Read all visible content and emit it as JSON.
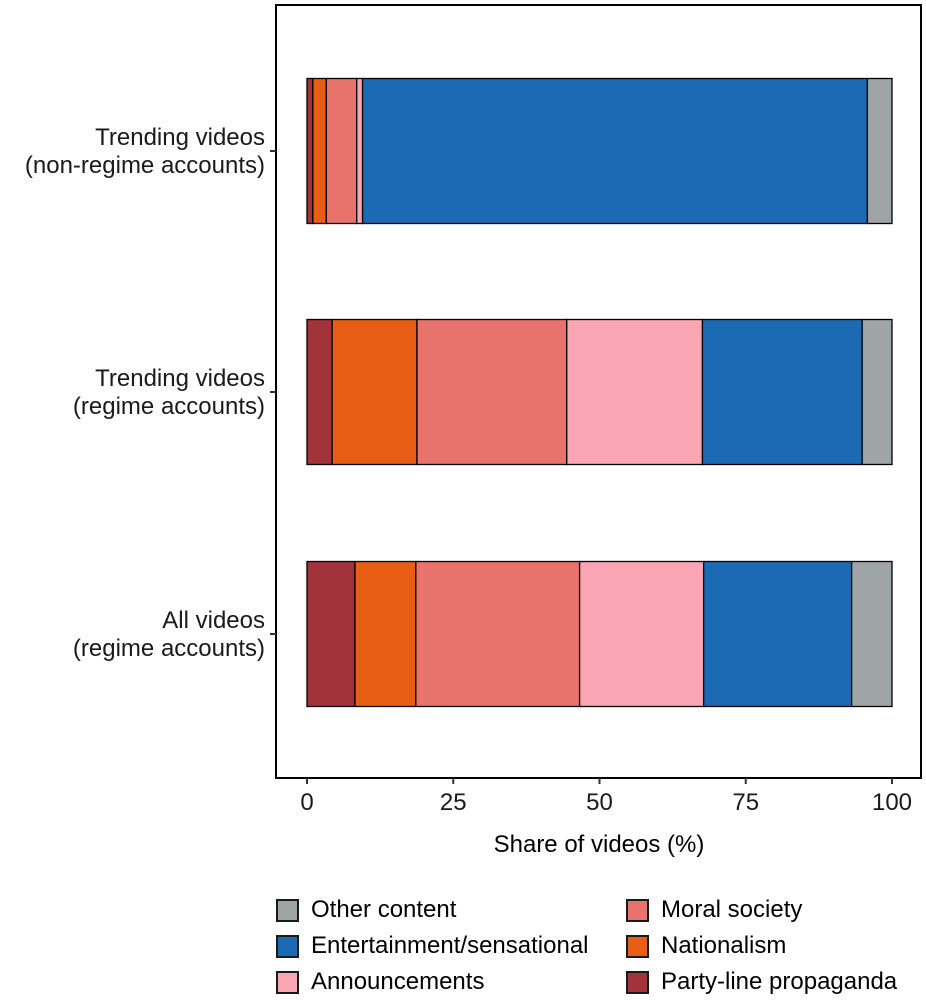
{
  "chart_data": {
    "type": "bar",
    "orientation": "horizontal",
    "stacked": true,
    "title": "",
    "xlabel": "Share of videos (%)",
    "ylabel": "",
    "xlim": [
      0,
      100
    ],
    "x_ticks": [
      "0",
      "25",
      "50",
      "75",
      "100"
    ],
    "grid": false,
    "legend_position": "bottom",
    "categories": [
      [
        "Trending videos",
        "(non-regime accounts)"
      ],
      [
        "Trending videos",
        "(regime accounts)"
      ],
      [
        "All videos",
        "(regime accounts)"
      ]
    ],
    "series": [
      {
        "name": "Party-line propaganda",
        "color": "#a2333a",
        "values": [
          1.0,
          4.3,
          8.2
        ]
      },
      {
        "name": "Nationalism",
        "color": "#e95e15",
        "values": [
          2.3,
          14.5,
          10.4
        ]
      },
      {
        "name": "Moral society",
        "color": "#e8736c",
        "values": [
          5.2,
          25.6,
          28.0
        ]
      },
      {
        "name": "Announcements",
        "color": "#f9a5b4",
        "values": [
          1.0,
          23.2,
          21.2
        ]
      },
      {
        "name": "Entertainment/sensational",
        "color": "#1c6ab3",
        "values": [
          86.3,
          27.3,
          25.3
        ]
      },
      {
        "name": "Other content",
        "color": "#9fa4a6",
        "values": [
          4.2,
          5.1,
          6.9
        ]
      }
    ],
    "legend": [
      "Other content",
      "Moral society",
      "Entertainment/sensational",
      "Nationalism",
      "Announcements",
      "Party-line propaganda"
    ]
  }
}
